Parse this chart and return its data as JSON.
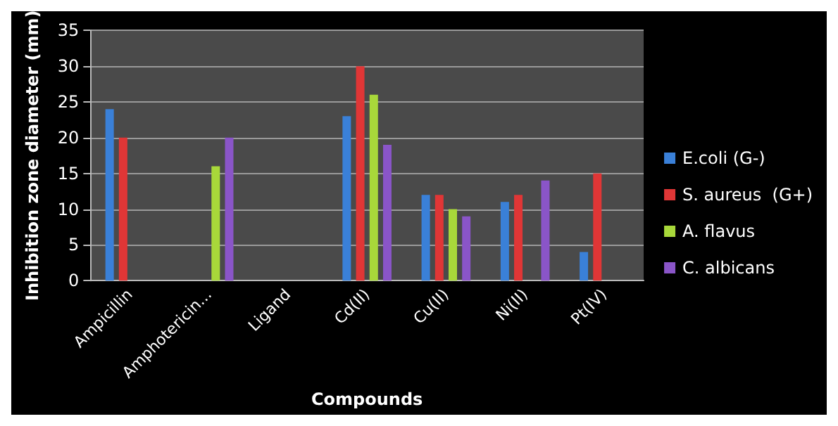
{
  "chart_data": {
    "type": "bar",
    "xlabel": "Compounds",
    "ylabel": "Inhibition zone diameter (mm)",
    "categories": [
      "Ampicillin",
      "Amphotericin...",
      "Ligand",
      "Cd(II)",
      "Cu(II)",
      "Ni(II)",
      "Pt(IV)"
    ],
    "series": [
      {
        "name": "E.coli (G-)",
        "color": "#3a80d8",
        "values": [
          24,
          0,
          0,
          23,
          12,
          11,
          4
        ]
      },
      {
        "name": "S. aureus  (G+)",
        "color": "#e03636",
        "values": [
          20,
          0,
          0,
          30,
          12,
          12,
          15
        ]
      },
      {
        "name": "A. flavus",
        "color": "#a8d83a",
        "values": [
          0,
          16,
          0,
          26,
          10,
          0,
          0
        ]
      },
      {
        "name": "C. albicans",
        "color": "#8a55c8",
        "values": [
          0,
          20,
          0,
          19,
          9,
          14,
          0
        ]
      }
    ],
    "ylim": [
      0,
      35
    ],
    "yticks": [
      0,
      5,
      10,
      15,
      20,
      25,
      30,
      35
    ],
    "grid": "y",
    "legend": "right"
  }
}
